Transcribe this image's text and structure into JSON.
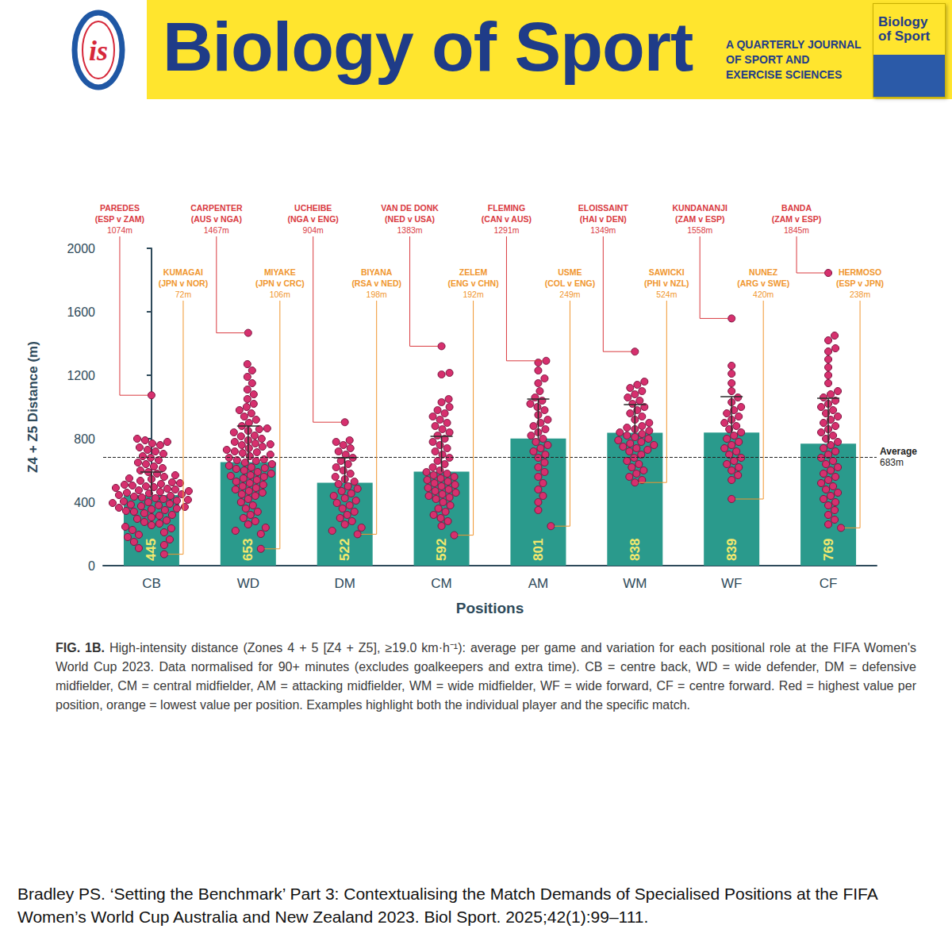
{
  "header": {
    "logo": "is",
    "title": "Biology of Sport",
    "tagline": [
      "A QUARTERLY JOURNAL",
      "OF SPORT AND",
      "EXERCISE SCIENCES"
    ],
    "cover_title": [
      "Biology",
      "of Sport"
    ]
  },
  "chart_data": {
    "type": "bar",
    "categories": [
      "CB",
      "WD",
      "DM",
      "CM",
      "AM",
      "WM",
      "WF",
      "CF"
    ],
    "values": [
      445,
      653,
      522,
      592,
      801,
      838,
      839,
      769
    ],
    "errors": [
      145,
      227,
      158,
      223,
      249,
      177,
      226,
      286
    ],
    "color": "#2a9a8c",
    "data_labels": true,
    "x_label": "Positions",
    "y_label": "Z4 + Z5 Distance (m)",
    "ylim": [
      0,
      2000
    ],
    "yticks": [
      0,
      400,
      800,
      1200,
      1600,
      2000
    ],
    "grid": false,
    "points": {
      "color": "#d6306e",
      "values": [
        [
          1074,
          800,
          790,
          780,
          770,
          760,
          745,
          730,
          720,
          705,
          690,
          680,
          665,
          650,
          640,
          625,
          615,
          600,
          590,
          580,
          570,
          560,
          550,
          545,
          535,
          525,
          515,
          505,
          500,
          490,
          480,
          470,
          465,
          455,
          450,
          440,
          430,
          425,
          415,
          405,
          400,
          390,
          380,
          375,
          365,
          355,
          350,
          340,
          330,
          320,
          315,
          305,
          295,
          285,
          275,
          265,
          255,
          245,
          235,
          225,
          210,
          195,
          180,
          165,
          150,
          130,
          110,
          72,
          520,
          510,
          495,
          485,
          475,
          460,
          445,
          435,
          420,
          410,
          395,
          385,
          370,
          360,
          345
        ],
        [
          1467,
          1270,
          1230,
          1190,
          1150,
          1110,
          1080,
          1050,
          1020,
          1000,
          980,
          960,
          940,
          920,
          900,
          880,
          860,
          850,
          840,
          820,
          800,
          790,
          780,
          770,
          760,
          750,
          740,
          730,
          720,
          710,
          700,
          690,
          680,
          670,
          660,
          650,
          640,
          630,
          620,
          610,
          600,
          590,
          580,
          570,
          560,
          550,
          540,
          530,
          520,
          510,
          500,
          490,
          480,
          470,
          460,
          450,
          440,
          420,
          400,
          380,
          360,
          340,
          320,
          300,
          280,
          260,
          240,
          220,
          200,
          106,
          765,
          715,
          665,
          615,
          565,
          815,
          865
        ],
        [
          904,
          790,
          780,
          760,
          740,
          720,
          700,
          680,
          660,
          640,
          620,
          600,
          580,
          560,
          545,
          530,
          515,
          500,
          485,
          470,
          455,
          440,
          425,
          410,
          395,
          380,
          360,
          340,
          320,
          300,
          280,
          260,
          240,
          220,
          198
        ],
        [
          1383,
          1215,
          1205,
          1050,
          1030,
          1000,
          980,
          960,
          940,
          920,
          900,
          880,
          860,
          840,
          820,
          800,
          780,
          760,
          740,
          720,
          700,
          680,
          660,
          640,
          620,
          600,
          590,
          580,
          570,
          560,
          550,
          540,
          530,
          520,
          510,
          500,
          490,
          480,
          470,
          460,
          450,
          440,
          430,
          420,
          400,
          380,
          360,
          340,
          320,
          300,
          280,
          250,
          192
        ],
        [
          1291,
          1280,
          1230,
          1180,
          1150,
          1100,
          1060,
          1040,
          1020,
          1000,
          980,
          950,
          920,
          900,
          880,
          860,
          840,
          820,
          800,
          780,
          760,
          740,
          720,
          700,
          680,
          650,
          620,
          590,
          560,
          520,
          480,
          440,
          400,
          350,
          249
        ],
        [
          1349,
          1160,
          1140,
          1120,
          1100,
          1080,
          1060,
          1040,
          1020,
          1000,
          980,
          960,
          940,
          920,
          900,
          880,
          870,
          860,
          850,
          840,
          830,
          820,
          810,
          800,
          790,
          780,
          770,
          760,
          750,
          740,
          730,
          720,
          700,
          680,
          660,
          640,
          620,
          600,
          580,
          560,
          540,
          524
        ],
        [
          1558,
          1260,
          1210,
          1150,
          1100,
          1060,
          1030,
          1000,
          980,
          960,
          940,
          920,
          900,
          880,
          860,
          840,
          820,
          800,
          780,
          760,
          740,
          720,
          700,
          680,
          660,
          640,
          620,
          600,
          570,
          540,
          420
        ],
        [
          1845,
          1450,
          1420,
          1370,
          1350,
          1300,
          1250,
          1200,
          1150,
          1100,
          1080,
          1060,
          1040,
          1020,
          1000,
          980,
          960,
          940,
          920,
          900,
          880,
          860,
          840,
          820,
          800,
          780,
          760,
          740,
          720,
          700,
          680,
          660,
          640,
          620,
          600,
          580,
          560,
          540,
          520,
          500,
          480,
          460,
          440,
          420,
          400,
          380,
          350,
          320,
          290,
          260,
          238
        ]
      ]
    },
    "average": {
      "value": 683,
      "label": "Average",
      "value_label": "683m"
    },
    "highlights": [
      {
        "category": "CB",
        "name": "PAREDES",
        "match": "(ESP v ZAM)",
        "value": 1074,
        "label": "1074m",
        "color": "#d93a3f"
      },
      {
        "category": "CB",
        "name": "KUMAGAI",
        "match": "(JPN v NOR)",
        "value": 72,
        "label": "72m",
        "color": "#f0962e"
      },
      {
        "category": "WD",
        "name": "CARPENTER",
        "match": "(AUS v NGA)",
        "value": 1467,
        "label": "1467m",
        "color": "#d93a3f"
      },
      {
        "category": "WD",
        "name": "MIYAKE",
        "match": "(JPN v CRC)",
        "value": 106,
        "label": "106m",
        "color": "#f0962e"
      },
      {
        "category": "DM",
        "name": "UCHEIBE",
        "match": "(NGA v ENG)",
        "value": 904,
        "label": "904m",
        "color": "#d93a3f"
      },
      {
        "category": "DM",
        "name": "BIYANA",
        "match": "(RSA v NED)",
        "value": 198,
        "label": "198m",
        "color": "#f0962e"
      },
      {
        "category": "CM",
        "name": "VAN DE DONK",
        "match": "(NED v USA)",
        "value": 1383,
        "label": "1383m",
        "color": "#d93a3f"
      },
      {
        "category": "CM",
        "name": "ZELEM",
        "match": "(ENG v CHN)",
        "value": 192,
        "label": "192m",
        "color": "#f0962e"
      },
      {
        "category": "AM",
        "name": "FLEMING",
        "match": "(CAN v AUS)",
        "value": 1291,
        "label": "1291m",
        "color": "#d93a3f"
      },
      {
        "category": "AM",
        "name": "USME",
        "match": "(COL v ENG)",
        "value": 249,
        "label": "249m",
        "color": "#f0962e"
      },
      {
        "category": "WM",
        "name": "ELOISSAINT",
        "match": "(HAI v DEN)",
        "value": 1349,
        "label": "1349m",
        "color": "#d93a3f"
      },
      {
        "category": "WM",
        "name": "SAWICKI",
        "match": "(PHI v NZL)",
        "value": 524,
        "label": "524m",
        "color": "#f0962e"
      },
      {
        "category": "WF",
        "name": "KUNDANANJI",
        "match": "(ZAM v ESP)",
        "value": 1558,
        "label": "1558m",
        "color": "#d93a3f"
      },
      {
        "category": "WF",
        "name": "NUNEZ",
        "match": "(ARG v SWE)",
        "value": 420,
        "label": "420m",
        "color": "#f0962e"
      },
      {
        "category": "CF",
        "name": "BANDA",
        "match": "(ZAM v ESP)",
        "value": 1845,
        "label": "1845m",
        "color": "#d93a3f"
      },
      {
        "category": "CF",
        "name": "HERMOSO",
        "match": "(ESP v JPN)",
        "value": 238,
        "label": "238m",
        "color": "#f0962e"
      }
    ]
  },
  "caption": {
    "label": "FIG. 1B.",
    "text": "High-intensity distance (Zones 4 + 5 [Z4 + Z5], ≥19.0 km·h⁻¹): average per game and variation for each positional role at the FIFA Women's World Cup 2023. Data normalised for 90+ minutes (excludes goalkeepers and extra time). CB = centre back, WD = wide defender, DM = defensive midfielder, CM = central midfielder, AM = attacking midfielder, WM = wide midfielder, WF = wide forward, CF = centre forward. Red = highest value per position, orange = lowest value per position. Examples highlight both the individual player and the specific match."
  },
  "citation": "Bradley PS. ‘Setting the Benchmark’ Part 3: Contextualising the Match Demands of Specialised Positions at the FIFA Women’s World Cup Australia and New Zealand 2023. Biol Sport. 2025;42(1):99–111."
}
